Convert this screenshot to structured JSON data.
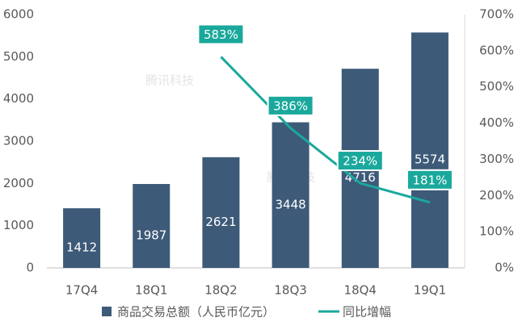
{
  "chart_data": {
    "type": "bar",
    "categories": [
      "17Q4",
      "18Q1",
      "18Q2",
      "18Q3",
      "18Q4",
      "19Q1"
    ],
    "series": [
      {
        "name": "商品交易总额（人民币亿元）",
        "color": "#3d5a78",
        "values": [
          1412,
          1987,
          2621,
          3448,
          4716,
          5574
        ]
      },
      {
        "name": "同比增幅",
        "type": "line",
        "axis": "y2",
        "color": "#1aa89c",
        "values": [
          null,
          null,
          583,
          386,
          234,
          181
        ],
        "value_labels": [
          null,
          null,
          "583%",
          "386%",
          "234%",
          "181%"
        ]
      }
    ],
    "ylim": [
      0,
      6000
    ],
    "yticks": [
      0,
      1000,
      2000,
      3000,
      4000,
      5000,
      6000
    ],
    "y2lim": [
      0,
      700
    ],
    "y2ticks": [
      {
        "value": 0,
        "label": "0%"
      },
      {
        "value": 100,
        "label": "100%"
      },
      {
        "value": 200,
        "label": "200%"
      },
      {
        "value": 300,
        "label": "300%"
      },
      {
        "value": 400,
        "label": "400%"
      },
      {
        "value": 500,
        "label": "500%"
      },
      {
        "value": 600,
        "label": "600%"
      },
      {
        "value": 700,
        "label": "700%"
      }
    ],
    "watermark": "腾讯科技",
    "grid": false
  }
}
